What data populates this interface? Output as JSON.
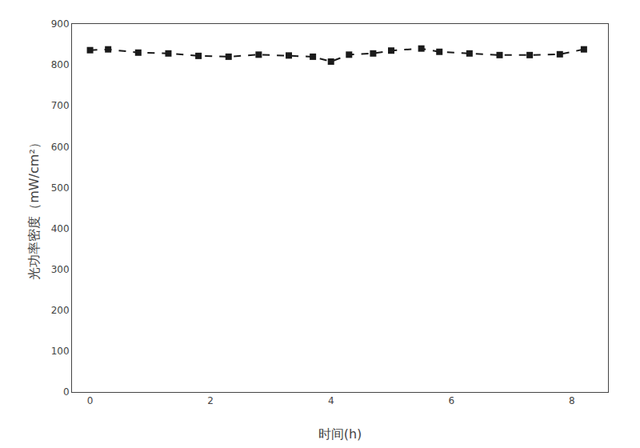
{
  "chart_data": {
    "type": "line",
    "x": [
      0.0,
      0.3,
      0.8,
      1.3,
      1.8,
      2.3,
      2.8,
      3.3,
      3.7,
      4.0,
      4.3,
      4.7,
      5.0,
      5.5,
      5.8,
      6.3,
      6.8,
      7.3,
      7.8,
      8.2
    ],
    "values": [
      836,
      838,
      830,
      828,
      822,
      820,
      825,
      823,
      820,
      808,
      825,
      828,
      835,
      840,
      832,
      828,
      824,
      824,
      826,
      838
    ],
    "xlabel": "时间(h)",
    "ylabel": "光功率密度（mW/cm²）",
    "xlim": [
      -0.3,
      8.6
    ],
    "ylim": [
      0,
      900
    ],
    "xticks": [
      0,
      2,
      4,
      6,
      8
    ],
    "yticks": [
      0,
      100,
      200,
      300,
      400,
      500,
      600,
      700,
      800,
      900
    ],
    "color": "#1a1a1a",
    "marker": "square",
    "line_style": "dashed",
    "grid": false
  }
}
